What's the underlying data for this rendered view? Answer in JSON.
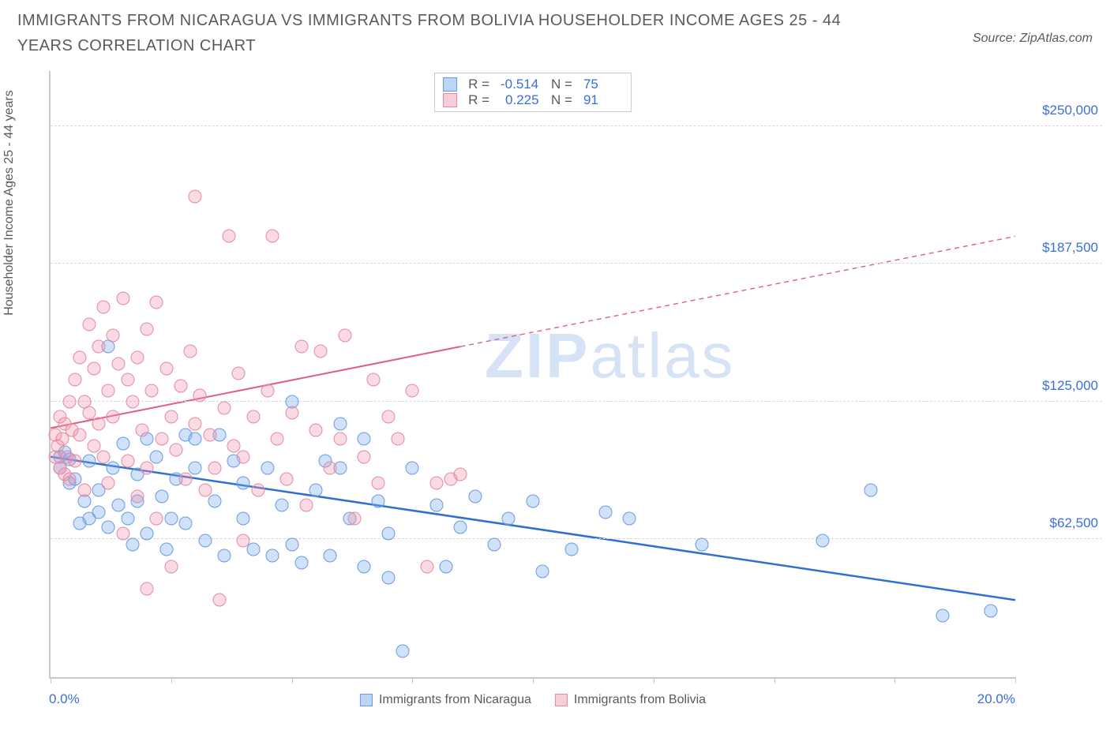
{
  "title": "IMMIGRANTS FROM NICARAGUA VS IMMIGRANTS FROM BOLIVIA HOUSEHOLDER INCOME AGES 25 - 44 YEARS CORRELATION CHART",
  "source": "Source: ZipAtlas.com",
  "ylabel": "Householder Income Ages 25 - 44 years",
  "chart": {
    "type": "scatter",
    "xlim": [
      0,
      20
    ],
    "ylim": [
      0,
      275000
    ],
    "x_axis_unit": "percent",
    "y_axis_unit": "usd",
    "y_gridlines": [
      62500,
      125000,
      187500,
      250000
    ],
    "y_tick_labels": [
      "$62,500",
      "$125,000",
      "$187,500",
      "$250,000"
    ],
    "x_ticks": [
      0,
      2.5,
      5,
      7.5,
      10,
      12.5,
      15,
      17.5,
      20
    ],
    "x_tick_labels": {
      "0": "0.0%",
      "20": "20.0%"
    },
    "background_color": "#ffffff",
    "grid_color": "#d8d8d8",
    "axis_color": "#c9c9c9",
    "tick_label_color": "#3b6fd6",
    "tick_label_fontsize": 17,
    "axis_label_color": "#5a5a5a",
    "point_radius": 8.5,
    "watermark": {
      "text_bold": "ZIP",
      "text_light": "atlas",
      "color": "#d6e2f5",
      "fontsize": 80
    }
  },
  "series": [
    {
      "name": "Immigrants from Nicaragua",
      "color_fill": "rgba(120,170,240,0.35)",
      "color_stroke": "#6a9ae0",
      "legend_swatch_fill": "#bcd4f6",
      "legend_swatch_stroke": "#6a9ae0",
      "stats": {
        "R": "-0.514",
        "N": "75"
      },
      "trend": {
        "y_at_x0": 100000,
        "y_at_x20": 35000,
        "solid_to_x": 20,
        "line_color": "#2f6fd0",
        "line_width": 2.5
      },
      "points": [
        [
          0.2,
          100000
        ],
        [
          0.2,
          95000
        ],
        [
          0.3,
          102000
        ],
        [
          0.4,
          88000
        ],
        [
          0.4,
          99000
        ],
        [
          0.5,
          90000
        ],
        [
          0.6,
          70000
        ],
        [
          0.7,
          80000
        ],
        [
          0.8,
          98000
        ],
        [
          0.8,
          72000
        ],
        [
          1.0,
          85000
        ],
        [
          1.0,
          75000
        ],
        [
          1.2,
          150000
        ],
        [
          1.2,
          68000
        ],
        [
          1.3,
          95000
        ],
        [
          1.4,
          78000
        ],
        [
          1.5,
          106000
        ],
        [
          1.6,
          72000
        ],
        [
          1.7,
          60000
        ],
        [
          1.8,
          92000
        ],
        [
          1.8,
          80000
        ],
        [
          2.0,
          65000
        ],
        [
          2.0,
          108000
        ],
        [
          2.2,
          100000
        ],
        [
          2.3,
          82000
        ],
        [
          2.4,
          58000
        ],
        [
          2.5,
          72000
        ],
        [
          2.6,
          90000
        ],
        [
          2.8,
          110000
        ],
        [
          2.8,
          70000
        ],
        [
          3.0,
          95000
        ],
        [
          3.0,
          108000
        ],
        [
          3.2,
          62000
        ],
        [
          3.4,
          80000
        ],
        [
          3.5,
          110000
        ],
        [
          3.6,
          55000
        ],
        [
          3.8,
          98000
        ],
        [
          4.0,
          88000
        ],
        [
          4.0,
          72000
        ],
        [
          4.2,
          58000
        ],
        [
          4.5,
          95000
        ],
        [
          4.6,
          55000
        ],
        [
          4.8,
          78000
        ],
        [
          5.0,
          125000
        ],
        [
          5.0,
          60000
        ],
        [
          5.2,
          52000
        ],
        [
          5.5,
          85000
        ],
        [
          5.7,
          98000
        ],
        [
          5.8,
          55000
        ],
        [
          6.0,
          115000
        ],
        [
          6.0,
          95000
        ],
        [
          6.2,
          72000
        ],
        [
          6.5,
          50000
        ],
        [
          6.5,
          108000
        ],
        [
          6.8,
          80000
        ],
        [
          7.0,
          65000
        ],
        [
          7.3,
          12000
        ],
        [
          7.5,
          95000
        ],
        [
          8.0,
          78000
        ],
        [
          8.2,
          50000
        ],
        [
          8.5,
          68000
        ],
        [
          8.8,
          82000
        ],
        [
          9.2,
          60000
        ],
        [
          9.5,
          72000
        ],
        [
          10.0,
          80000
        ],
        [
          10.2,
          48000
        ],
        [
          10.8,
          58000
        ],
        [
          11.5,
          75000
        ],
        [
          12.0,
          72000
        ],
        [
          13.5,
          60000
        ],
        [
          16.0,
          62000
        ],
        [
          17.0,
          85000
        ],
        [
          18.5,
          28000
        ],
        [
          19.5,
          30000
        ],
        [
          7.0,
          45000
        ]
      ]
    },
    {
      "name": "Immigrants from Bolivia",
      "color_fill": "rgba(240,150,175,0.35)",
      "color_stroke": "#e38aa2",
      "legend_swatch_fill": "#f6cdd9",
      "legend_swatch_stroke": "#e38aa2",
      "stats": {
        "R": "0.225",
        "N": "91"
      },
      "trend": {
        "y_at_x0": 113000,
        "y_at_x20": 200000,
        "solid_to_x": 8.5,
        "line_color": "#e15d84",
        "line_width": 2
      },
      "points": [
        [
          0.1,
          110000
        ],
        [
          0.1,
          100000
        ],
        [
          0.15,
          105000
        ],
        [
          0.2,
          95000
        ],
        [
          0.2,
          118000
        ],
        [
          0.25,
          108000
        ],
        [
          0.3,
          92000
        ],
        [
          0.3,
          115000
        ],
        [
          0.35,
          100000
        ],
        [
          0.4,
          125000
        ],
        [
          0.4,
          90000
        ],
        [
          0.45,
          112000
        ],
        [
          0.5,
          135000
        ],
        [
          0.5,
          98000
        ],
        [
          0.6,
          145000
        ],
        [
          0.6,
          110000
        ],
        [
          0.7,
          125000
        ],
        [
          0.7,
          85000
        ],
        [
          0.8,
          160000
        ],
        [
          0.8,
          120000
        ],
        [
          0.9,
          140000
        ],
        [
          0.9,
          105000
        ],
        [
          1.0,
          150000
        ],
        [
          1.0,
          115000
        ],
        [
          1.1,
          168000
        ],
        [
          1.1,
          100000
        ],
        [
          1.2,
          130000
        ],
        [
          1.2,
          88000
        ],
        [
          1.3,
          155000
        ],
        [
          1.3,
          118000
        ],
        [
          1.4,
          142000
        ],
        [
          1.5,
          172000
        ],
        [
          1.5,
          65000
        ],
        [
          1.6,
          135000
        ],
        [
          1.6,
          98000
        ],
        [
          1.7,
          125000
        ],
        [
          1.8,
          145000
        ],
        [
          1.8,
          82000
        ],
        [
          1.9,
          112000
        ],
        [
          2.0,
          158000
        ],
        [
          2.0,
          95000
        ],
        [
          2.1,
          130000
        ],
        [
          2.2,
          170000
        ],
        [
          2.2,
          72000
        ],
        [
          2.3,
          108000
        ],
        [
          2.4,
          140000
        ],
        [
          2.5,
          118000
        ],
        [
          2.5,
          50000
        ],
        [
          2.6,
          103000
        ],
        [
          2.7,
          132000
        ],
        [
          2.8,
          90000
        ],
        [
          2.9,
          148000
        ],
        [
          3.0,
          115000
        ],
        [
          3.0,
          218000
        ],
        [
          3.1,
          128000
        ],
        [
          3.2,
          85000
        ],
        [
          3.3,
          110000
        ],
        [
          3.4,
          95000
        ],
        [
          3.5,
          35000
        ],
        [
          3.6,
          122000
        ],
        [
          3.7,
          200000
        ],
        [
          3.8,
          105000
        ],
        [
          3.9,
          138000
        ],
        [
          4.0,
          100000
        ],
        [
          4.0,
          62000
        ],
        [
          4.2,
          118000
        ],
        [
          4.3,
          85000
        ],
        [
          4.5,
          130000
        ],
        [
          4.6,
          200000
        ],
        [
          4.7,
          108000
        ],
        [
          4.9,
          90000
        ],
        [
          5.0,
          120000
        ],
        [
          5.2,
          150000
        ],
        [
          5.3,
          78000
        ],
        [
          5.5,
          112000
        ],
        [
          5.6,
          148000
        ],
        [
          5.8,
          95000
        ],
        [
          6.0,
          108000
        ],
        [
          6.1,
          155000
        ],
        [
          6.3,
          72000
        ],
        [
          6.5,
          100000
        ],
        [
          6.7,
          135000
        ],
        [
          6.8,
          88000
        ],
        [
          7.0,
          118000
        ],
        [
          7.2,
          108000
        ],
        [
          7.5,
          130000
        ],
        [
          7.8,
          50000
        ],
        [
          8.0,
          88000
        ],
        [
          8.3,
          90000
        ],
        [
          8.5,
          92000
        ],
        [
          2.0,
          40000
        ]
      ]
    }
  ],
  "legend_labels": {
    "R": "R =",
    "N": "N ="
  }
}
